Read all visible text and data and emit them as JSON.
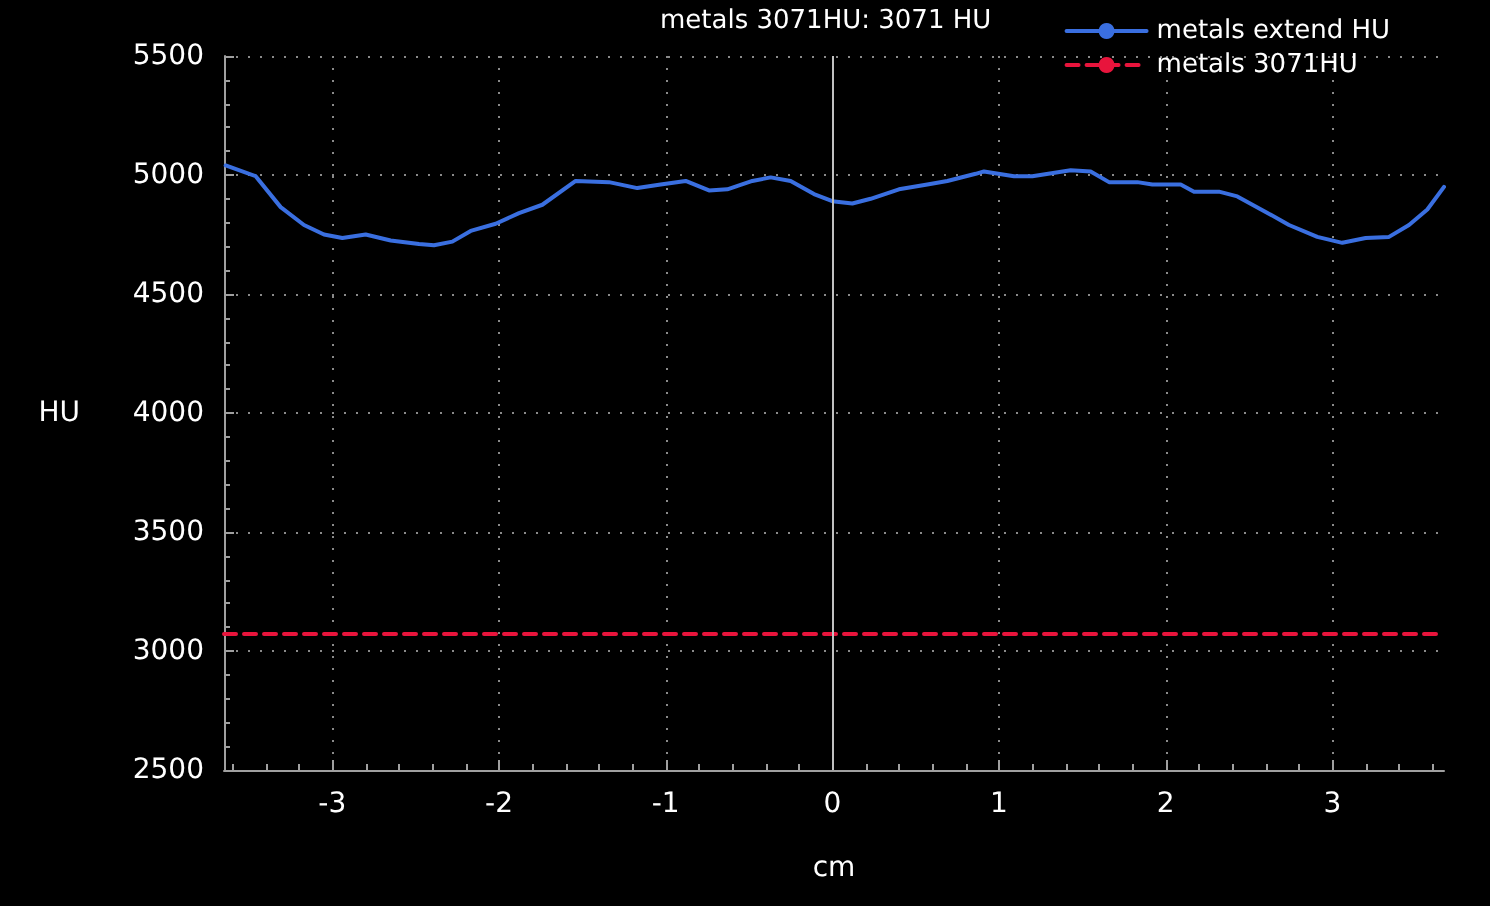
{
  "chart_data": {
    "type": "line",
    "xlabel": "cm",
    "ylabel": "HU",
    "xlim": [
      -3.65,
      3.67
    ],
    "xticks": [
      -3,
      -2,
      -1,
      0,
      1,
      2,
      3
    ],
    "ylim": [
      2500,
      5500
    ],
    "yticks": [
      2500,
      3000,
      3500,
      4000,
      4500,
      5000,
      5500
    ],
    "grid": true,
    "legend": "top right",
    "marker": "none",
    "annotations": [
      "metals 3071HU: 3071 HU"
    ],
    "ref_lines": [
      {
        "axis": "x",
        "value": 0,
        "color": "#c0c0c0"
      }
    ],
    "series": [
      {
        "name": "metals extend HU",
        "color": "#3a6fe0",
        "line_style": "solid",
        "x": [
          -3.64,
          -3.46,
          -3.31,
          -3.17,
          -3.05,
          -2.94,
          -2.8,
          -2.65,
          -2.48,
          -2.39,
          -2.28,
          -2.17,
          -2.02,
          -1.88,
          -1.74,
          -1.54,
          -1.34,
          -1.17,
          -1.03,
          -0.88,
          -0.74,
          -0.63,
          -0.48,
          -0.37,
          -0.25,
          -0.11,
          0,
          0.12,
          0.23,
          0.4,
          0.57,
          0.69,
          0.86,
          0.91,
          1.09,
          1.2,
          1.43,
          1.55,
          1.66,
          1.83,
          1.92,
          2.09,
          2.17,
          2.32,
          2.43,
          2.6,
          2.74,
          2.91,
          3.06,
          3.2,
          3.34,
          3.46,
          3.57,
          3.67
        ],
        "values": [
          5040,
          4995,
          4865,
          4790,
          4750,
          4735,
          4750,
          4725,
          4710,
          4705,
          4720,
          4765,
          4795,
          4840,
          4875,
          4975,
          4970,
          4945,
          4960,
          4975,
          4935,
          4940,
          4975,
          4990,
          4975,
          4920,
          4890,
          4880,
          4900,
          4940,
          4960,
          4975,
          5005,
          5015,
          4995,
          4995,
          5020,
          5015,
          4970,
          4970,
          4960,
          4960,
          4930,
          4930,
          4910,
          4845,
          4790,
          4740,
          4715,
          4735,
          4740,
          4790,
          4855,
          4950
        ]
      },
      {
        "name": "metals 3071HU",
        "color": "#e8143c",
        "line_style": "dashed",
        "x": [
          -3.65,
          3.67
        ],
        "values": [
          3071,
          3071
        ]
      }
    ]
  }
}
